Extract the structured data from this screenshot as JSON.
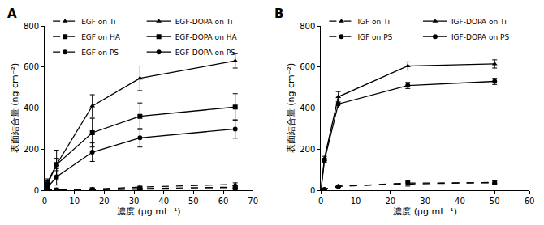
{
  "chart_data": [
    {
      "type": "line",
      "title": "A",
      "x_label": "濃度 (μg mL⁻¹)",
      "y_label": "表面結合量 (ng cm⁻²)",
      "x": [
        0,
        1,
        4,
        16,
        32,
        64
      ],
      "xlim": [
        0,
        70
      ],
      "xticks": [
        0,
        10,
        20,
        30,
        40,
        50,
        60,
        70
      ],
      "ylim": [
        0,
        800
      ],
      "yticks": [
        0,
        200,
        400,
        600,
        800
      ],
      "grid": false,
      "legend": "upper left",
      "series": [
        {
          "name": "EGF on Ti",
          "color": "#000000",
          "marker": "triangle-up",
          "line_style": "dashed",
          "values": [
            0,
            0,
            2,
            5,
            15,
            28
          ],
          "error": [
            0,
            0,
            2,
            3,
            5,
            8
          ]
        },
        {
          "name": "EGF-DOPA on Ti",
          "color": "#000000",
          "marker": "triangle-up",
          "line_style": "solid",
          "values": [
            0,
            40,
            125,
            410,
            545,
            630
          ],
          "error": [
            0,
            15,
            30,
            55,
            60,
            35
          ]
        },
        {
          "name": "EGF on HA",
          "color": "#000000",
          "marker": "square",
          "line_style": "dashed",
          "values": [
            0,
            0,
            1,
            3,
            8,
            15
          ],
          "error": [
            0,
            0,
            2,
            3,
            5,
            6
          ]
        },
        {
          "name": "EGF-DOPA on HA",
          "color": "#000000",
          "marker": "square",
          "line_style": "solid",
          "values": [
            0,
            30,
            125,
            280,
            360,
            405
          ],
          "error": [
            0,
            15,
            70,
            70,
            65,
            65
          ]
        },
        {
          "name": "EGF on PS",
          "color": "#000000",
          "marker": "circle",
          "line_style": "dashed",
          "values": [
            0,
            0,
            1,
            2,
            5,
            8
          ],
          "error": [
            0,
            0,
            1,
            2,
            3,
            4
          ]
        },
        {
          "name": "EGF-DOPA on PS",
          "color": "#000000",
          "marker": "circle",
          "line_style": "solid",
          "values": [
            0,
            15,
            65,
            185,
            255,
            298
          ],
          "error": [
            0,
            10,
            40,
            45,
            45,
            45
          ]
        }
      ]
    },
    {
      "type": "line",
      "title": "B",
      "x_label": "濃度 (μg mL⁻¹)",
      "y_label": "表面結合量 (ng cm⁻²)",
      "x": [
        0,
        1,
        5,
        25,
        50
      ],
      "xlim": [
        0,
        60
      ],
      "xticks": [
        0,
        10,
        20,
        30,
        40,
        50,
        60
      ],
      "ylim": [
        0,
        800
      ],
      "yticks": [
        0,
        200,
        400,
        600,
        800
      ],
      "grid": false,
      "legend": "upper left",
      "series": [
        {
          "name": "IGF on Ti",
          "color": "#000000",
          "marker": "triangle-up",
          "line_style": "dashed",
          "values": [
            0,
            5,
            20,
            30,
            38
          ],
          "error": [
            0,
            2,
            5,
            10,
            8
          ]
        },
        {
          "name": "IGF-DOPA on Ti",
          "color": "#000000",
          "marker": "triangle-up",
          "line_style": "solid",
          "values": [
            0,
            155,
            455,
            605,
            615
          ],
          "error": [
            0,
            10,
            25,
            20,
            20
          ]
        },
        {
          "name": "IGF on PS",
          "color": "#000000",
          "marker": "circle",
          "line_style": "dashed",
          "values": [
            0,
            4,
            18,
            35,
            36
          ],
          "error": [
            0,
            2,
            5,
            10,
            8
          ]
        },
        {
          "name": "IGF-DOPA on PS",
          "color": "#000000",
          "marker": "circle",
          "line_style": "solid",
          "values": [
            0,
            145,
            420,
            510,
            530
          ],
          "error": [
            0,
            10,
            20,
            15,
            15
          ]
        }
      ]
    }
  ]
}
